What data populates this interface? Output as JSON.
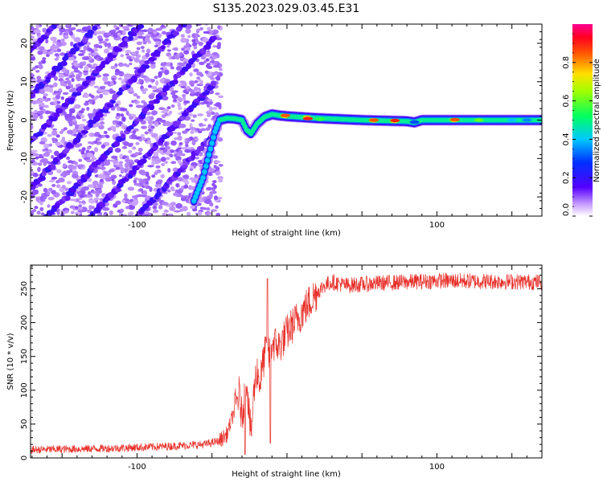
{
  "figure_title": "S135.2023.029.03.45.E31",
  "chart_data": [
    {
      "type": "heatmap",
      "xlabel": "Height of straight line (km)",
      "ylabel": "Frequency (Hz)",
      "xlim": [
        -171,
        170
      ],
      "ylim": [
        -25,
        25
      ],
      "xticks": [
        -100,
        0,
        100
      ],
      "xtick_labels": [
        "-100",
        "",
        "100"
      ],
      "yticks": [
        -20,
        -10,
        0,
        10,
        20
      ],
      "ytick_labels": [
        "-20",
        "-10",
        "0",
        "10",
        "20"
      ],
      "grid": false,
      "colorbar": {
        "label": "Normalized spectral amplitude",
        "range": [
          0.0,
          1.0
        ],
        "ticks": [
          0.0,
          0.2,
          0.4,
          0.6,
          0.8
        ],
        "tick_labels": [
          "0.0",
          "0.2",
          "0.4",
          "0.6",
          "0.8"
        ],
        "colormap": "rainbow (white-violet-blue-cyan-green-yellow-red-magenta)"
      },
      "features": {
        "diagonal_tracks_below_x": -52,
        "main_ridge": [
          [
            -62,
            -21
          ],
          [
            -56,
            -15
          ],
          [
            -52,
            -9
          ],
          [
            -48,
            -3
          ],
          [
            -45,
            0
          ],
          [
            -40,
            0.5
          ],
          [
            -35,
            0.4
          ],
          [
            -30,
            0
          ],
          [
            -27,
            -2.5
          ],
          [
            -24,
            -3.5
          ],
          [
            -20,
            -1
          ],
          [
            -15,
            0.8
          ],
          [
            -10,
            1.5
          ],
          [
            -5,
            1.2
          ],
          [
            0,
            1.0
          ],
          [
            20,
            0.5
          ],
          [
            50,
            0
          ],
          [
            80,
            -0.3
          ],
          [
            85,
            -0.6
          ],
          [
            90,
            0
          ],
          [
            110,
            0
          ],
          [
            130,
            0
          ],
          [
            165,
            0
          ]
        ],
        "hot_spots": [
          [
            -1,
            1.2,
            0.85
          ],
          [
            14,
            0.4,
            0.9
          ],
          [
            22,
            0.2,
            0.55
          ],
          [
            58,
            0,
            0.85
          ],
          [
            72,
            -0.1,
            0.9
          ],
          [
            85,
            -0.5,
            0.3
          ],
          [
            112,
            0.1,
            0.85
          ],
          [
            128,
            0,
            0.6
          ],
          [
            150,
            0,
            0.4
          ],
          [
            160,
            0,
            0.35
          ]
        ]
      }
    },
    {
      "type": "line",
      "xlabel": "Height of straight line (km)",
      "ylabel": "SNR (10 * v/v)",
      "xlim": [
        -171,
        170
      ],
      "ylim": [
        0,
        285
      ],
      "xticks": [
        -100,
        0,
        100
      ],
      "xtick_labels": [
        "-100",
        "",
        "100"
      ],
      "yticks": [
        0,
        50,
        100,
        150,
        200,
        250
      ],
      "ytick_labels": [
        "0",
        "50",
        "100",
        "150",
        "200",
        "250"
      ],
      "grid": false,
      "series": [
        {
          "color": "#e8302a",
          "envelope_x": [
            -171,
            -120,
            -80,
            -55,
            -45,
            -40,
            -35,
            -32,
            -30,
            -27,
            -24,
            -22,
            -20,
            -18,
            -16,
            -14,
            -12,
            -10,
            -5,
            0,
            5,
            10,
            15,
            20,
            25,
            30,
            40,
            60,
            100,
            170
          ],
          "envelope_y": [
            12,
            14,
            17,
            20,
            25,
            35,
            70,
            95,
            60,
            120,
            30,
            100,
            130,
            110,
            140,
            160,
            150,
            170,
            165,
            185,
            200,
            215,
            230,
            245,
            255,
            260,
            255,
            258,
            262,
            260
          ],
          "noise_amplitude": 12,
          "spikes": [
            [
              -13,
              265
            ],
            [
              -11,
              22
            ],
            [
              -28,
              5
            ]
          ]
        }
      ]
    }
  ],
  "colors": {
    "line": "#e8302a",
    "axis": "#000000",
    "background": "#ffffff"
  }
}
